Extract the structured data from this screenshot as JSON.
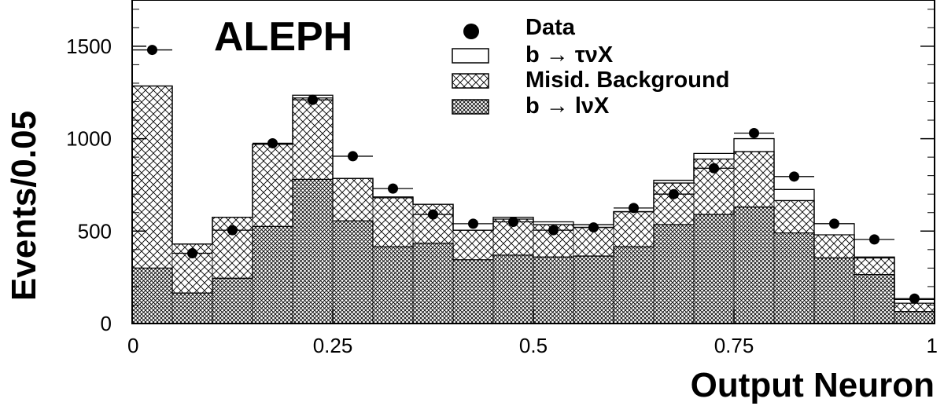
{
  "chart_data": {
    "type": "bar",
    "title": "ALEPH",
    "xlabel": "Output Neuron",
    "ylabel": "Events/0.05",
    "xlim": [
      0,
      1
    ],
    "ylim": [
      0,
      1750
    ],
    "x_ticks": [
      {
        "value": 0,
        "label": "0"
      },
      {
        "value": 0.25,
        "label": "0.25"
      },
      {
        "value": 0.5,
        "label": "0.5"
      },
      {
        "value": 0.75,
        "label": "0.75"
      },
      {
        "value": 1,
        "label": "1"
      }
    ],
    "y_ticks": [
      {
        "value": 0,
        "label": "0"
      },
      {
        "value": 500,
        "label": "500"
      },
      {
        "value": 1000,
        "label": "1000"
      },
      {
        "value": 1500,
        "label": "1500"
      }
    ],
    "bin_edges": [
      0,
      0.05,
      0.1,
      0.15,
      0.2,
      0.25,
      0.3,
      0.35,
      0.4,
      0.45,
      0.5,
      0.55,
      0.6,
      0.65,
      0.7,
      0.75,
      0.8,
      0.85,
      0.9,
      0.95,
      1.0
    ],
    "series": [
      {
        "name": "b → lνX",
        "kind": "stack",
        "pattern": "dense-cross",
        "values": [
          300,
          165,
          245,
          525,
          780,
          555,
          415,
          435,
          345,
          370,
          360,
          365,
          415,
          535,
          590,
          630,
          490,
          355,
          265,
          65
        ]
      },
      {
        "name": "Misid. Background",
        "kind": "stack",
        "pattern": "cross",
        "values": [
          985,
          265,
          330,
          445,
          440,
          230,
          265,
          210,
          160,
          195,
          175,
          155,
          190,
          225,
          300,
          300,
          175,
          125,
          90,
          45
        ]
      },
      {
        "name": "b → τνX",
        "kind": "stack",
        "pattern": "open",
        "values": [
          0,
          0,
          0,
          0,
          15,
          0,
          5,
          0,
          0,
          10,
          15,
          15,
          0,
          15,
          30,
          70,
          60,
          60,
          5,
          20
        ]
      },
      {
        "name": "Data",
        "kind": "points",
        "values": [
          1480,
          380,
          505,
          975,
          1210,
          905,
          730,
          590,
          540,
          550,
          505,
          520,
          625,
          700,
          840,
          1030,
          795,
          540,
          455,
          135
        ]
      }
    ],
    "legend": {
      "placement": "top-center"
    },
    "grid": false
  }
}
